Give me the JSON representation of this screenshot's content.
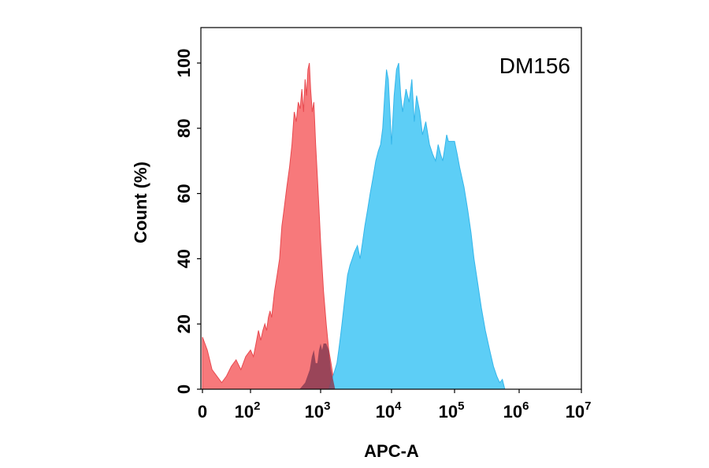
{
  "chart_data": {
    "type": "area",
    "title": "",
    "annotation": "DM156",
    "xlabel": "APC-A",
    "ylabel": "Count  (%)",
    "x_scale": "biexponential",
    "x_ticks": [
      {
        "value": 0,
        "label": "0",
        "sup": ""
      },
      {
        "value": 100,
        "label": "10",
        "sup": "2"
      },
      {
        "value": 1000,
        "label": "10",
        "sup": "3"
      },
      {
        "value": 10000,
        "label": "10",
        "sup": "4"
      },
      {
        "value": 100000,
        "label": "10",
        "sup": "5"
      },
      {
        "value": 1000000,
        "label": "10",
        "sup": "6"
      },
      {
        "value": 10000000,
        "label": "10",
        "sup": "7"
      }
    ],
    "y_ticks": [
      0,
      20,
      40,
      60,
      80,
      100
    ],
    "ylim": [
      0,
      110
    ],
    "grid": false,
    "series": [
      {
        "color": "#f7797b",
        "stroke": "#e84a50",
        "points": [
          [
            0,
            16
          ],
          [
            10,
            12
          ],
          [
            20,
            6
          ],
          [
            30,
            4
          ],
          [
            40,
            2
          ],
          [
            50,
            4
          ],
          [
            60,
            7
          ],
          [
            70,
            9
          ],
          [
            80,
            6
          ],
          [
            90,
            10
          ],
          [
            100,
            12
          ],
          [
            110,
            10
          ],
          [
            120,
            14
          ],
          [
            130,
            18
          ],
          [
            140,
            15
          ],
          [
            150,
            18
          ],
          [
            160,
            20
          ],
          [
            170,
            18
          ],
          [
            180,
            22
          ],
          [
            190,
            24
          ],
          [
            200,
            22
          ],
          [
            220,
            30
          ],
          [
            240,
            35
          ],
          [
            260,
            40
          ],
          [
            280,
            50
          ],
          [
            300,
            55
          ],
          [
            330,
            62
          ],
          [
            360,
            68
          ],
          [
            390,
            75
          ],
          [
            420,
            85
          ],
          [
            450,
            82
          ],
          [
            480,
            88
          ],
          [
            510,
            86
          ],
          [
            540,
            92
          ],
          [
            570,
            85
          ],
          [
            600,
            95
          ],
          [
            630,
            90
          ],
          [
            660,
            98
          ],
          [
            690,
            100
          ],
          [
            720,
            92
          ],
          [
            760,
            85
          ],
          [
            800,
            88
          ],
          [
            850,
            75
          ],
          [
            900,
            65
          ],
          [
            950,
            55
          ],
          [
            1000,
            45
          ],
          [
            1100,
            30
          ],
          [
            1200,
            20
          ],
          [
            1300,
            12
          ],
          [
            1400,
            8
          ],
          [
            1500,
            4
          ],
          [
            1600,
            2
          ],
          [
            1700,
            0
          ]
        ]
      },
      {
        "color": "#5dcef6",
        "stroke": "#35b6ea",
        "points": [
          [
            1300,
            0
          ],
          [
            1500,
            4
          ],
          [
            1700,
            8
          ],
          [
            1800,
            12
          ],
          [
            1900,
            16
          ],
          [
            2000,
            20
          ],
          [
            2200,
            28
          ],
          [
            2400,
            35
          ],
          [
            2600,
            38
          ],
          [
            2800,
            40
          ],
          [
            3000,
            42
          ],
          [
            3300,
            44
          ],
          [
            3600,
            40
          ],
          [
            3900,
            45
          ],
          [
            4200,
            50
          ],
          [
            4600,
            55
          ],
          [
            5000,
            60
          ],
          [
            5500,
            65
          ],
          [
            6000,
            70
          ],
          [
            6500,
            73
          ],
          [
            7000,
            75
          ],
          [
            7500,
            80
          ],
          [
            8000,
            90
          ],
          [
            8500,
            98
          ],
          [
            9000,
            95
          ],
          [
            10000,
            75
          ],
          [
            11000,
            90
          ],
          [
            12000,
            98
          ],
          [
            13000,
            100
          ],
          [
            14000,
            90
          ],
          [
            15000,
            85
          ],
          [
            17000,
            92
          ],
          [
            19000,
            88
          ],
          [
            21000,
            95
          ],
          [
            23000,
            82
          ],
          [
            25000,
            90
          ],
          [
            28000,
            85
          ],
          [
            31000,
            78
          ],
          [
            35000,
            82
          ],
          [
            40000,
            75
          ],
          [
            45000,
            72
          ],
          [
            50000,
            70
          ],
          [
            55000,
            75
          ],
          [
            60000,
            72
          ],
          [
            65000,
            70
          ],
          [
            70000,
            74
          ],
          [
            75000,
            78
          ],
          [
            80000,
            76
          ],
          [
            90000,
            76
          ],
          [
            100000,
            76
          ],
          [
            110000,
            72
          ],
          [
            120000,
            68
          ],
          [
            140000,
            62
          ],
          [
            160000,
            55
          ],
          [
            180000,
            48
          ],
          [
            200000,
            40
          ],
          [
            230000,
            32
          ],
          [
            260000,
            25
          ],
          [
            300000,
            18
          ],
          [
            350000,
            12
          ],
          [
            400000,
            7
          ],
          [
            450000,
            4
          ],
          [
            500000,
            2
          ],
          [
            550000,
            3
          ],
          [
            600000,
            0
          ]
        ]
      },
      {
        "color": "#8a3c53",
        "stroke": "none",
        "points": [
          [
            500,
            0
          ],
          [
            600,
            2
          ],
          [
            700,
            6
          ],
          [
            750,
            10
          ],
          [
            800,
            12
          ],
          [
            850,
            8
          ],
          [
            900,
            8
          ],
          [
            950,
            12
          ],
          [
            1000,
            14
          ],
          [
            1050,
            12
          ],
          [
            1100,
            14
          ],
          [
            1200,
            14
          ],
          [
            1300,
            12
          ],
          [
            1400,
            6
          ],
          [
            1500,
            3
          ],
          [
            1600,
            0
          ]
        ]
      }
    ]
  }
}
